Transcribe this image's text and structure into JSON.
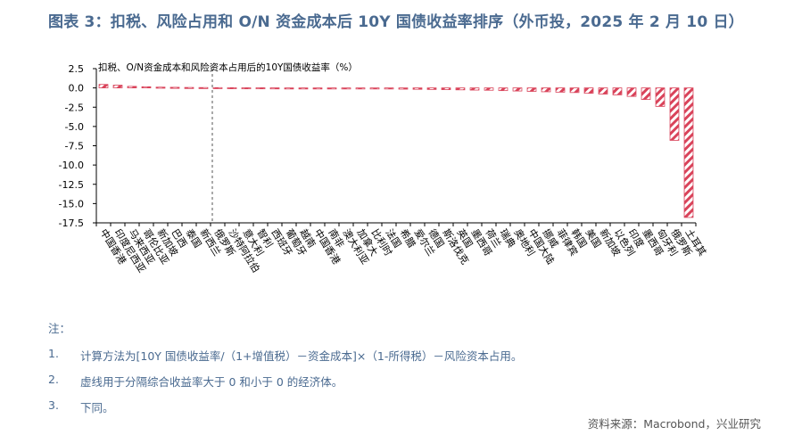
{
  "title": "图表 3：扣税、风险占用和 O/N 资金成本后 10Y 国债收益率排序（外币投，2025 年 2 月 10 日）",
  "chart_data": {
    "type": "bar",
    "title": "扣税、O/N资金成本和风险资本占用后的10Y国债收益率（%）",
    "categories": [
      "中国香港",
      "印度尼西亚",
      "马来西亚",
      "哥伦比亚",
      "新加坡",
      "巴西",
      "泰国",
      "新西兰",
      "俄罗斯",
      "沙特阿拉伯",
      "意大利",
      "智利",
      "西班牙",
      "葡萄牙",
      "越南",
      "中国香港",
      "南非",
      "澳大利亚",
      "加拿大",
      "比利时",
      "法国",
      "希腊",
      "爱尔兰",
      "德国",
      "斯洛伐克",
      "英国",
      "墨西哥",
      "荷兰",
      "瑞典",
      "奥地利",
      "中国大陆",
      "挪威",
      "菲律宾",
      "韩国",
      "美国",
      "新加坡",
      "以色列",
      "印度",
      "墨西哥",
      "匈牙利",
      "俄罗斯",
      "土耳其"
    ],
    "values": [
      0.45,
      0.35,
      0.2,
      0.15,
      0.1,
      0.08,
      0.06,
      0.05,
      0.04,
      0.03,
      0.02,
      0.02,
      0.01,
      0.0,
      -0.02,
      -0.04,
      -0.06,
      -0.08,
      -0.1,
      -0.12,
      -0.14,
      -0.16,
      -0.18,
      -0.2,
      -0.22,
      -0.25,
      -0.28,
      -0.3,
      -0.35,
      -0.4,
      -0.45,
      -0.5,
      -0.55,
      -0.6,
      -0.7,
      -0.8,
      -0.9,
      -1.1,
      -1.5,
      -2.4,
      -6.8,
      -16.8
    ],
    "ylim": [
      -17.5,
      2.5
    ],
    "yticks": [
      "2.5",
      "0.0",
      "-2.5",
      "-5.0",
      "-7.5",
      "-10.0",
      "-12.5",
      "-15.0",
      "-17.5"
    ],
    "divider_after_index": 13,
    "bar_color": "#d9435a",
    "grid": false,
    "legend": "none"
  },
  "notes": {
    "header": "注：",
    "items": [
      {
        "num": "1.",
        "text": "计算方法为[10Y 国债收益率/（1+增值税）－资金成本]×（1-所得税）－风险资本占用。"
      },
      {
        "num": "2.",
        "text": "虚线用于分隔综合收益率大于 0 和小于 0 的经济体。"
      },
      {
        "num": "3.",
        "text": "下同。"
      }
    ]
  },
  "source": "资料来源：Macrobond，兴业研究"
}
